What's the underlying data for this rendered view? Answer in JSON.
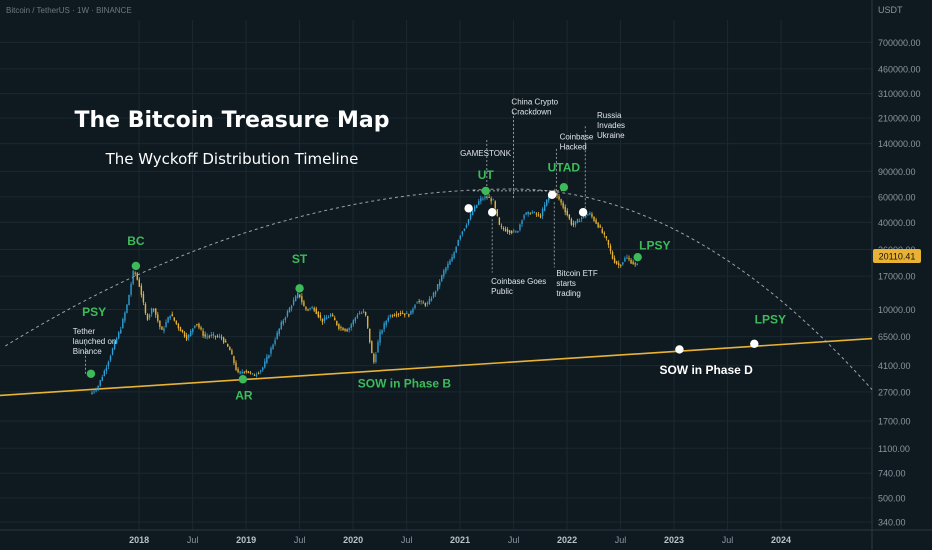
{
  "symbol_line": "Bitcoin / TetherUS · 1W · BINANCE",
  "currency": "USDT",
  "current_price": "20110.41",
  "title": "The Bitcoin Treasure Map",
  "subtitle": "The Wyckoff Distribution Timeline",
  "colors": {
    "background": "#0f1a20",
    "grid": "#1b2830",
    "up": "#2f9fd6",
    "down": "#e9b234",
    "phase_label": "#3dbb5a",
    "support_line": "#e9b234",
    "curve": "#c8d0d6",
    "axis_text": "#8a96a0"
  },
  "chart_data": {
    "type": "line",
    "yscale": "log",
    "ylim": [
      300,
      1000000
    ],
    "xlim": [
      2016.7,
      2024.85
    ],
    "y_ticks": [
      "700000.00",
      "460000.00",
      "310000.00",
      "210000.00",
      "140000.00",
      "90000.00",
      "60000.00",
      "40000.00",
      "26000.00",
      "17000.00",
      "10000.00",
      "6500.00",
      "4100.00",
      "2700.00",
      "1700.00",
      "1100.00",
      "740.00",
      "500.00",
      "340.00"
    ],
    "x_ticks": [
      "2018",
      "Jul",
      "2019",
      "Jul",
      "2020",
      "Jul",
      "2021",
      "Jul",
      "2022",
      "Jul",
      "2023",
      "Jul",
      "2024"
    ],
    "series": [
      {
        "values": [
          [
            2017.55,
            2600
          ],
          [
            2017.62,
            2900
          ],
          [
            2017.7,
            4000
          ],
          [
            2017.78,
            5800
          ],
          [
            2017.84,
            7500
          ],
          [
            2017.9,
            11000
          ],
          [
            2017.96,
            19000
          ],
          [
            2018.02,
            14000
          ],
          [
            2018.08,
            8500
          ],
          [
            2018.14,
            10500
          ],
          [
            2018.22,
            7000
          ],
          [
            2018.3,
            9300
          ],
          [
            2018.38,
            7500
          ],
          [
            2018.46,
            6300
          ],
          [
            2018.54,
            8200
          ],
          [
            2018.62,
            6500
          ],
          [
            2018.7,
            6600
          ],
          [
            2018.78,
            6400
          ],
          [
            2018.86,
            5200
          ],
          [
            2018.93,
            3600
          ],
          [
            2019.0,
            3800
          ],
          [
            2019.08,
            3500
          ],
          [
            2019.16,
            3900
          ],
          [
            2019.24,
            5300
          ],
          [
            2019.34,
            8000
          ],
          [
            2019.44,
            11000
          ],
          [
            2019.5,
            13000
          ],
          [
            2019.56,
            10000
          ],
          [
            2019.64,
            10300
          ],
          [
            2019.72,
            8300
          ],
          [
            2019.8,
            9200
          ],
          [
            2019.88,
            7500
          ],
          [
            2019.96,
            7200
          ],
          [
            2020.05,
            9300
          ],
          [
            2020.12,
            9700
          ],
          [
            2020.2,
            4200
          ],
          [
            2020.26,
            6800
          ],
          [
            2020.34,
            9000
          ],
          [
            2020.44,
            9500
          ],
          [
            2020.54,
            9200
          ],
          [
            2020.6,
            11500
          ],
          [
            2020.7,
            10800
          ],
          [
            2020.78,
            13500
          ],
          [
            2020.86,
            18500
          ],
          [
            2020.94,
            23000
          ],
          [
            2021.0,
            32000
          ],
          [
            2021.06,
            38000
          ],
          [
            2021.12,
            47000
          ],
          [
            2021.2,
            58000
          ],
          [
            2021.26,
            60000
          ],
          [
            2021.32,
            56000
          ],
          [
            2021.38,
            37000
          ],
          [
            2021.46,
            35000
          ],
          [
            2021.54,
            34000
          ],
          [
            2021.6,
            45000
          ],
          [
            2021.68,
            47000
          ],
          [
            2021.76,
            44000
          ],
          [
            2021.84,
            62000
          ],
          [
            2021.88,
            66000
          ],
          [
            2021.94,
            57000
          ],
          [
            2022.0,
            47000
          ],
          [
            2022.06,
            38000
          ],
          [
            2022.14,
            43000
          ],
          [
            2022.22,
            46000
          ],
          [
            2022.3,
            38000
          ],
          [
            2022.38,
            30000
          ],
          [
            2022.44,
            22000
          ],
          [
            2022.5,
            20000
          ],
          [
            2022.56,
            23000
          ],
          [
            2022.62,
            21000
          ],
          [
            2022.66,
            20100
          ]
        ]
      }
    ],
    "annotations": [
      {
        "text": "PSY",
        "x": 2017.58,
        "y": 9000,
        "style": "phase"
      },
      {
        "text": "BC",
        "x": 2017.97,
        "y": 28000,
        "style": "phase"
      },
      {
        "text": "AR",
        "x": 2018.98,
        "y": 2400,
        "style": "phase"
      },
      {
        "text": "ST",
        "x": 2019.5,
        "y": 21000,
        "style": "phase"
      },
      {
        "text": "SOW in Phase B",
        "x": 2020.48,
        "y": 2900,
        "style": "phase"
      },
      {
        "text": "UT",
        "x": 2021.24,
        "y": 80000,
        "style": "phase"
      },
      {
        "text": "UTAD",
        "x": 2021.97,
        "y": 90000,
        "style": "phase"
      },
      {
        "text": "LPSY",
        "x": 2022.82,
        "y": 26000,
        "style": "phase"
      },
      {
        "text": "LPSY",
        "x": 2023.9,
        "y": 8000,
        "style": "phase"
      },
      {
        "text": "SOW in Phase D",
        "x": 2023.3,
        "y": 3600,
        "style": "white"
      },
      {
        "text": "Tether launched on Binance",
        "x": 2017.38,
        "y": 6800,
        "style": "note"
      },
      {
        "text": "GAMESTONK",
        "x": 2021.0,
        "y": 115000,
        "style": "note"
      },
      {
        "text": "China Crypto Crackdown",
        "x": 2021.48,
        "y": 260000,
        "style": "note"
      },
      {
        "text": "Coinbase Hacked",
        "x": 2021.93,
        "y": 150000,
        "style": "note"
      },
      {
        "text": "Russia Invades Ukraine",
        "x": 2022.28,
        "y": 210000,
        "style": "note"
      },
      {
        "text": "Coinbase Goes Public",
        "x": 2021.29,
        "y": 15000,
        "style": "note"
      },
      {
        "text": "Bitcoin ETF starts trading",
        "x": 2021.9,
        "y": 17000,
        "style": "note"
      }
    ],
    "markers": [
      {
        "x": 2017.55,
        "y": 3600,
        "color": "green"
      },
      {
        "x": 2017.97,
        "y": 20000,
        "color": "green"
      },
      {
        "x": 2018.97,
        "y": 3300,
        "color": "green"
      },
      {
        "x": 2019.5,
        "y": 14000,
        "color": "green"
      },
      {
        "x": 2021.24,
        "y": 66000,
        "color": "green"
      },
      {
        "x": 2021.97,
        "y": 70000,
        "color": "green"
      },
      {
        "x": 2022.66,
        "y": 23000,
        "color": "green"
      },
      {
        "x": 2021.08,
        "y": 50000,
        "color": "white"
      },
      {
        "x": 2021.3,
        "y": 47000,
        "color": "white"
      },
      {
        "x": 2021.86,
        "y": 62000,
        "color": "white"
      },
      {
        "x": 2022.15,
        "y": 47000,
        "color": "white"
      },
      {
        "x": 2023.05,
        "y": 5300,
        "color": "white"
      },
      {
        "x": 2023.75,
        "y": 5800,
        "color": "white"
      }
    ],
    "support_line": {
      "from": [
        2016.7,
        2550
      ],
      "to": [
        2024.85,
        6300
      ]
    },
    "distribution_curve": {
      "from": [
        2016.75,
        5600
      ],
      "peak": [
        2021.5,
        68000
      ],
      "to": [
        2024.85,
        2800
      ]
    }
  }
}
